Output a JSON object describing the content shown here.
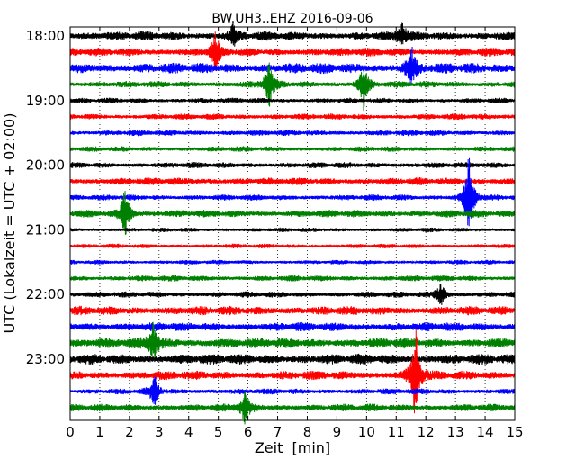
{
  "chart_data": {
    "type": "line",
    "title": "BW.UH3..EHZ 2016-09-06",
    "xlabel": "Zeit  [min]",
    "ylabel": "UTC (Lokalzeit = UTC + 02:00)",
    "xlim": [
      0,
      15
    ],
    "xticks": [
      "0",
      "1",
      "2",
      "3",
      "4",
      "5",
      "6",
      "7",
      "8",
      "9",
      "10",
      "11",
      "12",
      "13",
      "14",
      "15"
    ],
    "ytick_labels": [
      "18:00",
      "19:00",
      "20:00",
      "21:00",
      "22:00",
      "23:00"
    ],
    "trace_start": "18:00",
    "trace_interval_min": 15,
    "trace_count": 24,
    "trace_colors": [
      "#000000",
      "#ff0000",
      "#0000ff",
      "#008000"
    ],
    "grid": "vertical dotted lines at each minute",
    "trace_amplitude": [
      0.3,
      0.28,
      0.35,
      0.22,
      0.18,
      0.2,
      0.2,
      0.18,
      0.2,
      0.25,
      0.2,
      0.25,
      0.15,
      0.15,
      0.15,
      0.2,
      0.2,
      0.3,
      0.3,
      0.35,
      0.35,
      0.3,
      0.2,
      0.25
    ],
    "events": [
      {
        "trace": 0,
        "minute": 11.2,
        "amplitude": 0.8
      },
      {
        "trace": 0,
        "minute": 5.5,
        "amplitude": 0.7
      },
      {
        "trace": 1,
        "minute": 4.9,
        "amplitude": 1.1
      },
      {
        "trace": 2,
        "minute": 11.5,
        "amplitude": 1.5
      },
      {
        "trace": 3,
        "minute": 6.7,
        "amplitude": 1.6
      },
      {
        "trace": 3,
        "minute": 9.9,
        "amplitude": 1.5
      },
      {
        "trace": 11,
        "minute": 1.85,
        "amplitude": 1.6
      },
      {
        "trace": 10,
        "minute": 13.45,
        "amplitude": 3.0
      },
      {
        "trace": 16,
        "minute": 12.5,
        "amplitude": 0.8
      },
      {
        "trace": 19,
        "minute": 2.8,
        "amplitude": 1.2
      },
      {
        "trace": 21,
        "minute": 11.65,
        "amplitude": 3.2
      },
      {
        "trace": 22,
        "minute": 2.85,
        "amplitude": 1.0
      },
      {
        "trace": 23,
        "minute": 5.9,
        "amplitude": 1.0
      }
    ]
  }
}
